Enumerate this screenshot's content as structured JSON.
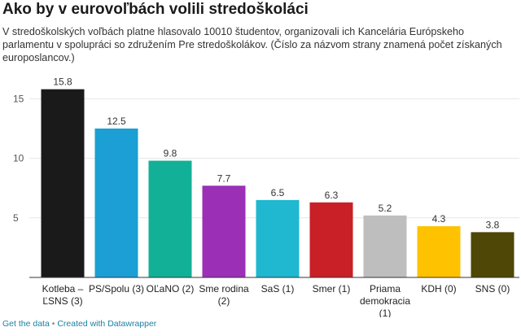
{
  "header": {
    "title": "Ako by v eurovoľbách volili stredoškoláci",
    "description": "V stredoškolských voľbách platne hlasovalo 10010 študentov, organizovali ich Kancelária Európskeho parlamentu v spolupráci so združením Pre stredoškolákov. (Číslo za názvom strany znamená počet získaných europoslancov.)"
  },
  "footer": {
    "get_data": "Get the data",
    "separator": "•",
    "created_with": "Created with Datawrapper"
  },
  "chart_data": {
    "type": "bar",
    "categories": [
      [
        "Kotleba –",
        "ĽSNS (3)"
      ],
      [
        "PS/Spolu (3)"
      ],
      [
        "OĽaNO (2)"
      ],
      [
        "Sme rodina",
        "(2)"
      ],
      [
        "SaS (1)"
      ],
      [
        "Smer (1)"
      ],
      [
        "Priama",
        "demokracia",
        "(1)"
      ],
      [
        "KDH (0)"
      ],
      [
        "SNS (0)"
      ]
    ],
    "values": [
      15.8,
      12.5,
      9.8,
      7.7,
      6.5,
      6.3,
      5.2,
      4.3,
      3.8
    ],
    "value_labels": [
      "15.8",
      "12.5",
      "9.8",
      "7.7",
      "6.5",
      "6.3",
      "5.2",
      "4.3",
      "3.8"
    ],
    "colors": [
      "#1a1a1a",
      "#1b9fd4",
      "#12b097",
      "#9b2fb5",
      "#1fb8d0",
      "#c91f27",
      "#bebebe",
      "#fec200",
      "#4f4705"
    ],
    "yticks": [
      5,
      10,
      15
    ],
    "ytick_labels": [
      "5",
      "10",
      "15"
    ],
    "ylim": [
      0,
      17.5
    ],
    "grid": true
  }
}
